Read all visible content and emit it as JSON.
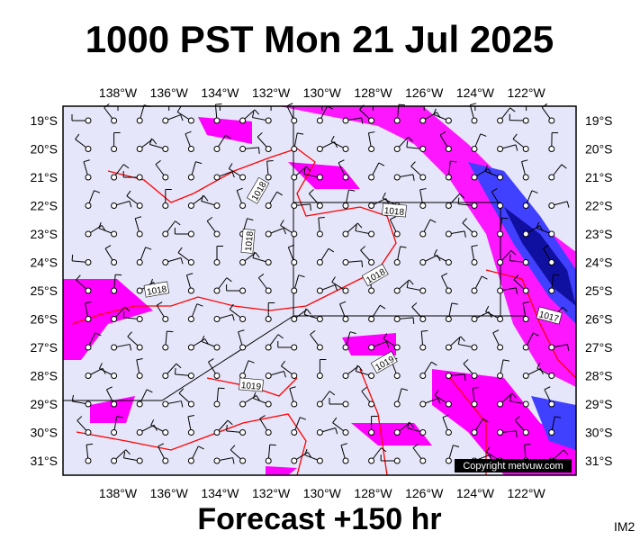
{
  "header": {
    "title": "1000 PST Mon 21 Jul 2025"
  },
  "map": {
    "lon_labels": [
      "138°W",
      "136°W",
      "134°W",
      "132°W",
      "130°W",
      "128°W",
      "126°W",
      "124°W",
      "122°W"
    ],
    "lat_labels": [
      "19°S",
      "20°S",
      "21°S",
      "22°S",
      "23°S",
      "24°S",
      "25°S",
      "26°S",
      "27°S",
      "28°S",
      "29°S",
      "30°S",
      "31°S"
    ],
    "contour_labels": [
      "1018",
      "1018",
      "1018",
      "1018",
      "1018",
      "1019",
      "1019",
      "1017"
    ],
    "copyright": "Copyright metvuw.com"
  },
  "footer": {
    "forecast": "Forecast +150 hr",
    "code": "IM2"
  }
}
